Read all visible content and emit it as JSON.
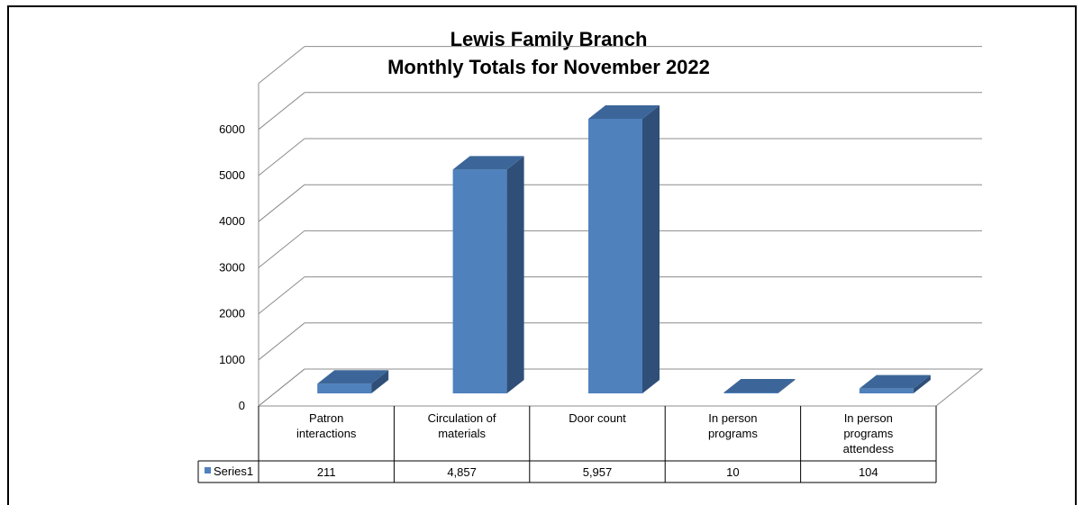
{
  "chart_data": {
    "type": "bar",
    "title": [
      "Lewis Family Branch",
      "Monthly Totals for November 2022"
    ],
    "categories": [
      [
        "Patron",
        "interactions"
      ],
      [
        "Circulation of",
        "materials"
      ],
      [
        "Door count"
      ],
      [
        "In person",
        "programs"
      ],
      [
        "In person",
        "programs",
        "attendess"
      ]
    ],
    "series": [
      {
        "name": "Series1",
        "values": [
          211,
          4857,
          5957,
          10,
          104
        ],
        "value_labels": [
          "211",
          "4,857",
          "5,957",
          "10",
          "104"
        ],
        "color": "#4F81BD"
      }
    ],
    "yticks": [
      "0",
      "1000",
      "2000",
      "3000",
      "4000",
      "5000",
      "6000"
    ],
    "ylim": [
      0,
      7000
    ],
    "grid": true,
    "data_table": true,
    "style": "3d-column"
  }
}
